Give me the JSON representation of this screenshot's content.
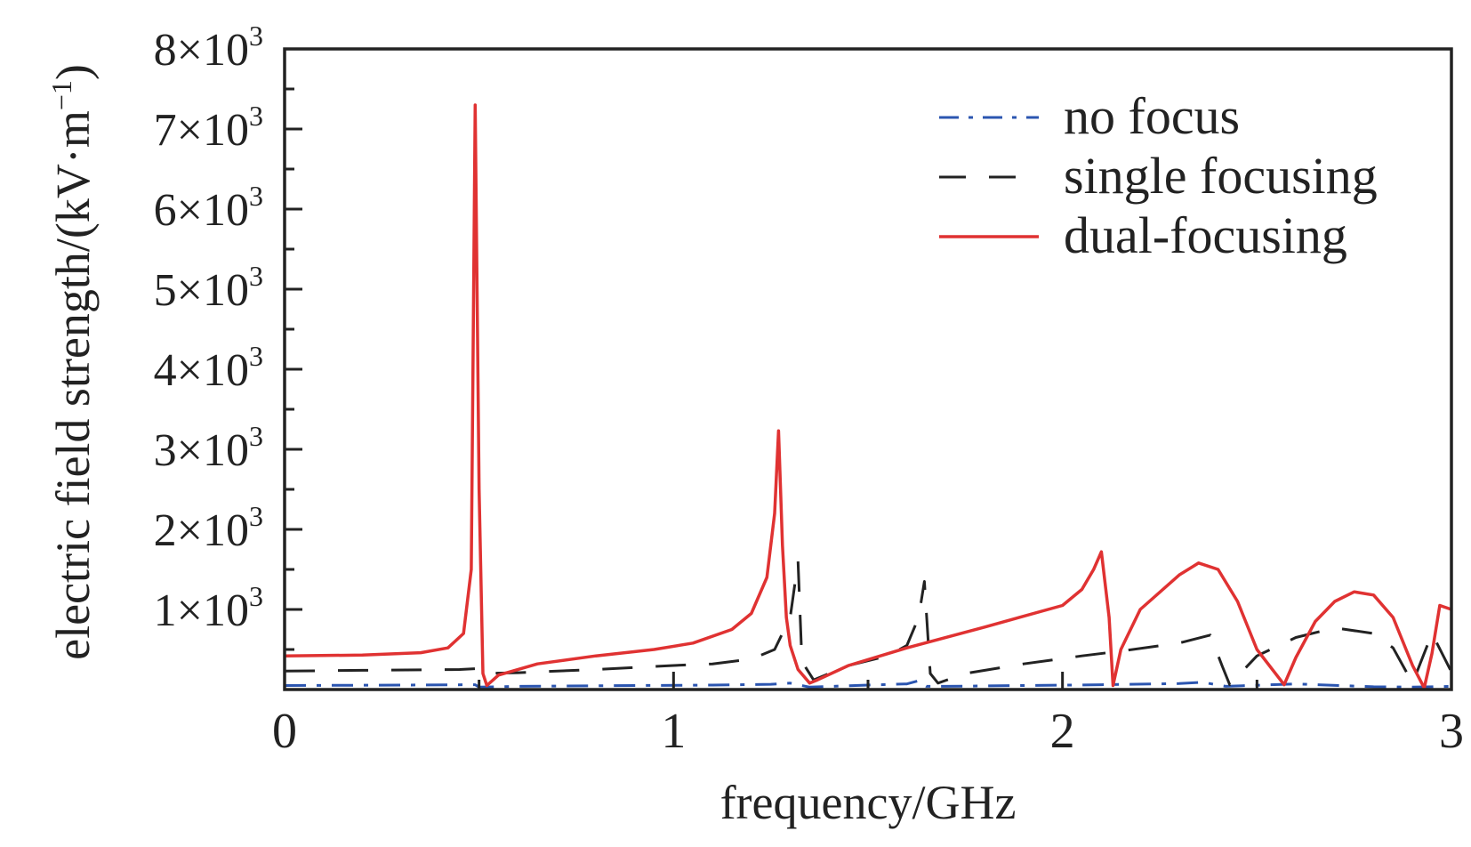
{
  "chart_data": {
    "type": "line",
    "title": "",
    "xlabel": "frequency/GHz",
    "ylabel_main": "electric field strength/(kV·m",
    "ylabel_sup": "−1",
    "ylabel_close": ")",
    "xlim": [
      0,
      3
    ],
    "ylim": [
      0,
      8000
    ],
    "x_ticks": [
      0,
      1,
      2,
      3
    ],
    "x_tick_labels": [
      "0",
      "1",
      "2",
      "3"
    ],
    "y_ticks": [
      1000,
      2000,
      3000,
      4000,
      5000,
      6000,
      7000,
      8000
    ],
    "y_tick_labels": [
      {
        "mantissa": "1×10",
        "exp": "3"
      },
      {
        "mantissa": "2×10",
        "exp": "3"
      },
      {
        "mantissa": "3×10",
        "exp": "3"
      },
      {
        "mantissa": "4×10",
        "exp": "3"
      },
      {
        "mantissa": "5×10",
        "exp": "3"
      },
      {
        "mantissa": "6×10",
        "exp": "3"
      },
      {
        "mantissa": "7×10",
        "exp": "3"
      },
      {
        "mantissa": "8×10",
        "exp": "3"
      }
    ],
    "grid": false,
    "legend_position": "top-right",
    "series": [
      {
        "name": "no focus",
        "color": "#2b55b0",
        "style": "dashdot",
        "x": [
          0,
          0.3,
          0.49,
          0.5,
          0.6,
          0.9,
          1.1,
          1.25,
          1.3,
          1.35,
          1.5,
          1.6,
          1.63,
          1.65,
          1.7,
          1.9,
          2.1,
          2.3,
          2.36,
          2.42,
          2.6,
          2.8,
          2.9,
          3.0
        ],
        "y": [
          50,
          55,
          60,
          30,
          40,
          50,
          55,
          65,
          80,
          30,
          55,
          70,
          110,
          40,
          40,
          50,
          60,
          75,
          90,
          40,
          70,
          35,
          30,
          40
        ]
      },
      {
        "name": "single focusing",
        "color": "#222222",
        "style": "dashed",
        "x": [
          0,
          0.2,
          0.45,
          0.49,
          0.5,
          0.6,
          0.8,
          1.0,
          1.1,
          1.2,
          1.26,
          1.3,
          1.32,
          1.33,
          1.36,
          1.45,
          1.55,
          1.6,
          1.63,
          1.645,
          1.66,
          1.68,
          1.75,
          1.9,
          2.05,
          2.15,
          2.3,
          2.38,
          2.41,
          2.43,
          2.5,
          2.6,
          2.7,
          2.8,
          2.85,
          2.9,
          2.95,
          3.0
        ],
        "y": [
          230,
          240,
          250,
          260,
          200,
          210,
          250,
          300,
          320,
          380,
          500,
          900,
          1600,
          350,
          120,
          300,
          420,
          550,
          900,
          1350,
          200,
          80,
          200,
          320,
          420,
          480,
          580,
          680,
          300,
          60,
          420,
          650,
          770,
          700,
          520,
          80,
          700,
          220
        ]
      },
      {
        "name": "dual-focusing",
        "color": "#e03232",
        "style": "solid",
        "x": [
          0,
          0.2,
          0.35,
          0.42,
          0.46,
          0.48,
          0.49,
          0.5,
          0.51,
          0.52,
          0.55,
          0.65,
          0.8,
          0.95,
          1.05,
          1.15,
          1.2,
          1.24,
          1.26,
          1.27,
          1.28,
          1.29,
          1.3,
          1.32,
          1.35,
          1.37,
          1.45,
          1.6,
          1.8,
          2.0,
          2.05,
          2.08,
          2.1,
          2.12,
          2.13,
          2.15,
          2.2,
          2.3,
          2.35,
          2.4,
          2.45,
          2.5,
          2.57,
          2.6,
          2.65,
          2.7,
          2.75,
          2.8,
          2.85,
          2.9,
          2.93,
          2.95,
          2.97,
          3.0
        ],
        "y": [
          420,
          430,
          460,
          520,
          700,
          1500,
          7300,
          2500,
          200,
          50,
          180,
          320,
          420,
          500,
          580,
          750,
          950,
          1400,
          2200,
          3230,
          1800,
          900,
          550,
          250,
          80,
          120,
          300,
          520,
          780,
          1050,
          1250,
          1500,
          1720,
          900,
          50,
          500,
          1000,
          1430,
          1580,
          1500,
          1100,
          500,
          60,
          400,
          850,
          1100,
          1220,
          1180,
          900,
          300,
          20,
          450,
          1050,
          1000
        ]
      }
    ]
  }
}
